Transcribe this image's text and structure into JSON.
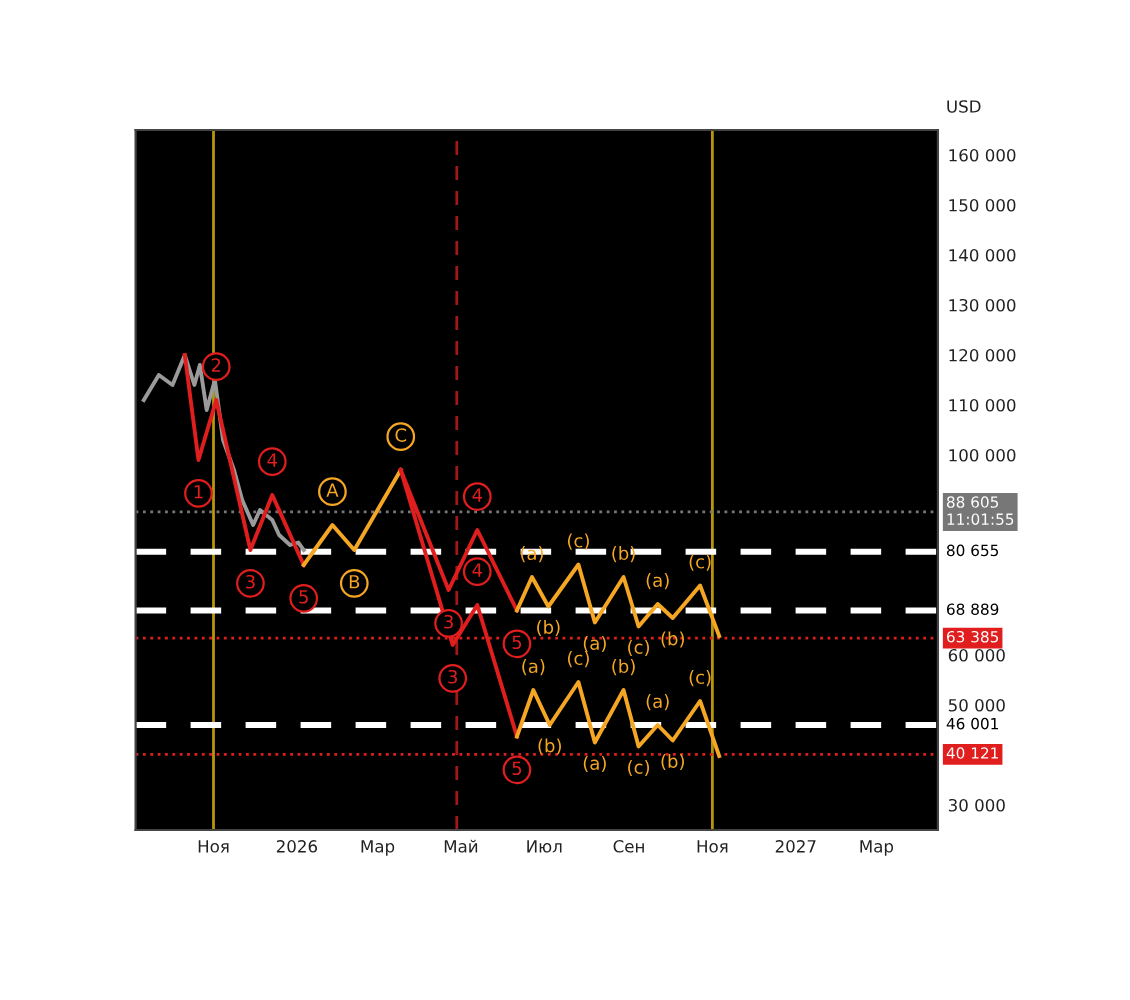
{
  "chart_data": {
    "type": "line",
    "ylabel": "USD",
    "xlim": [
      "2025-09-05",
      "2027-04-15"
    ],
    "xticks": [
      {
        "value": "2025-11-01",
        "label": "Ноя"
      },
      {
        "value": "2026-01-01",
        "label": "2026"
      },
      {
        "value": "2026-03-01",
        "label": "Мар"
      },
      {
        "value": "2026-05-01",
        "label": "Май"
      },
      {
        "value": "2026-07-01",
        "label": "Июл"
      },
      {
        "value": "2026-09-01",
        "label": "Сен"
      },
      {
        "value": "2026-11-01",
        "label": "Ноя"
      },
      {
        "value": "2027-01-01",
        "label": "2027"
      },
      {
        "value": "2027-03-01",
        "label": "Мар"
      }
    ],
    "ylim": [
      25000,
      165000
    ],
    "yticks": [
      {
        "value": 30000,
        "label": "30 000"
      },
      {
        "value": 50000,
        "label": "50 000"
      },
      {
        "value": 60000,
        "label": "60 000"
      },
      {
        "value": 100000,
        "label": "100 000"
      },
      {
        "value": 110000,
        "label": "110 000"
      },
      {
        "value": 120000,
        "label": "120 000"
      },
      {
        "value": 130000,
        "label": "130 000"
      },
      {
        "value": 140000,
        "label": "140 000"
      },
      {
        "value": 150000,
        "label": "150 000"
      },
      {
        "value": 160000,
        "label": "160 000"
      }
    ],
    "grid": false,
    "marker": "none",
    "line_style": "solid",
    "series": [
      {
        "color": "#9a9a9a",
        "x": [
          "2025-09-11",
          "2025-09-22",
          "2025-10-02",
          "2025-10-11",
          "2025-10-18",
          "2025-10-22",
          "2025-10-27",
          "2025-11-02",
          "2025-11-08",
          "2025-11-16",
          "2025-11-22",
          "2025-11-30",
          "2025-12-05",
          "2025-12-14",
          "2025-12-19",
          "2025-12-27",
          "2026-01-02",
          "2026-01-06"
        ],
        "values": [
          111000,
          116000,
          114000,
          120000,
          114000,
          118000,
          109000,
          115000,
          103000,
          97000,
          91000,
          86000,
          89000,
          87000,
          84000,
          82000,
          82500,
          81000
        ]
      },
      {
        "color": "#e01e1e",
        "x": [
          "2025-10-11",
          "2025-10-21",
          "2025-11-03",
          "2025-11-28",
          "2025-12-14",
          "2026-01-06"
        ],
        "values": [
          120000,
          99000,
          111000,
          81000,
          92000,
          78000
        ]
      },
      {
        "color": "#f5a623",
        "x": [
          "2026-01-06",
          "2026-01-27",
          "2026-02-12",
          "2026-03-18"
        ],
        "values": [
          78000,
          86000,
          81000,
          97000
        ]
      },
      {
        "color": "#e01e1e",
        "x": [
          "2026-03-18",
          "2026-04-22",
          "2026-05-13",
          "2026-06-11"
        ],
        "values": [
          97000,
          73000,
          85000,
          68900
        ]
      },
      {
        "color": "#f5a623",
        "x": [
          "2026-06-11",
          "2026-06-22",
          "2026-07-04",
          "2026-07-26",
          "2026-08-07",
          "2026-08-28",
          "2026-09-08",
          "2026-09-22",
          "2026-10-03",
          "2026-10-23",
          "2026-11-06"
        ],
        "values": [
          68900,
          75600,
          69700,
          78100,
          66500,
          75600,
          65700,
          70200,
          67400,
          73900,
          63800
        ]
      },
      {
        "color": "#e01e1e",
        "x": [
          "2026-03-18",
          "2026-04-25",
          "2026-05-13",
          "2026-06-11"
        ],
        "values": [
          97000,
          62000,
          70000,
          43700
        ]
      },
      {
        "color": "#f5a623",
        "x": [
          "2026-06-11",
          "2026-06-23",
          "2026-07-05",
          "2026-07-26",
          "2026-08-07",
          "2026-08-28",
          "2026-09-08",
          "2026-09-22",
          "2026-10-03",
          "2026-10-23",
          "2026-11-06"
        ],
        "values": [
          43700,
          53000,
          46000,
          54600,
          42500,
          53000,
          41700,
          46000,
          42900,
          50800,
          39800
        ]
      }
    ],
    "ref_lines": [
      {
        "axis": "y",
        "value": 88605,
        "label": "88 605\n11:01:55",
        "color": "#777777",
        "line_style": "dotted"
      },
      {
        "axis": "y",
        "value": 80655,
        "label": "80 655",
        "color": "#ffffff",
        "line_style": "dashed"
      },
      {
        "axis": "y",
        "value": 68889,
        "label": "68 889",
        "color": "#ffffff",
        "line_style": "dashed"
      },
      {
        "axis": "y",
        "value": 63385,
        "label": "63 385",
        "color": "#e01e1e",
        "line_style": "dotted"
      },
      {
        "axis": "y",
        "value": 46001,
        "label": "46 001",
        "color": "#ffffff",
        "line_style": "dashed"
      },
      {
        "axis": "y",
        "value": 40121,
        "label": "40 121",
        "color": "#e01e1e",
        "line_style": "dotted"
      },
      {
        "axis": "x",
        "value": "2025-11-01",
        "color": "#b8960c",
        "line_style": "solid"
      },
      {
        "axis": "x",
        "value": "2026-04-28",
        "color": "#a01818",
        "line_style": "dashed"
      },
      {
        "axis": "x",
        "value": "2026-11-01",
        "color": "#b8960c",
        "line_style": "solid"
      }
    ],
    "annotations": [
      {
        "text": "2",
        "x": "2025-11-03",
        "y": 111000
      },
      {
        "text": "1",
        "x": "2025-10-21",
        "y": 99000
      },
      {
        "text": "4",
        "x": "2025-12-14",
        "y": 92000
      },
      {
        "text": "3",
        "x": "2025-11-28",
        "y": 81000
      },
      {
        "text": "5",
        "x": "2026-01-06",
        "y": 78000
      },
      {
        "text": "A",
        "x": "2026-01-27",
        "y": 86000
      },
      {
        "text": "B",
        "x": "2026-02-12",
        "y": 81000
      },
      {
        "text": "C",
        "x": "2026-03-18",
        "y": 97000
      },
      {
        "text": "3",
        "x": "2026-04-22",
        "y": 73000
      },
      {
        "text": "4",
        "x": "2026-05-13",
        "y": 85000
      },
      {
        "text": "5",
        "x": "2026-06-11",
        "y": 68900
      },
      {
        "text": "3",
        "x": "2026-04-25",
        "y": 62000
      },
      {
        "text": "4",
        "x": "2026-05-13",
        "y": 70000
      },
      {
        "text": "(a)",
        "x": "2026-06-22",
        "y": 75600
      },
      {
        "text": "(b)",
        "x": "2026-07-04",
        "y": 69700
      },
      {
        "text": "(c)",
        "x": "2026-07-26",
        "y": 78100
      },
      {
        "text": "(a)",
        "x": "2026-08-07",
        "y": 66500
      },
      {
        "text": "(b)",
        "x": "2026-08-28",
        "y": 75600
      },
      {
        "text": "(c)",
        "x": "2026-09-08",
        "y": 65700
      },
      {
        "text": "(a)",
        "x": "2026-09-22",
        "y": 70200
      },
      {
        "text": "(b)",
        "x": "2026-10-03",
        "y": 67400
      },
      {
        "text": "(c)",
        "x": "2026-10-23",
        "y": 73900
      },
      {
        "text": "5",
        "x": "2026-06-11",
        "y": 43700
      },
      {
        "text": "(a)",
        "x": "2026-06-23",
        "y": 53000
      },
      {
        "text": "(b)",
        "x": "2026-07-05",
        "y": 46000
      },
      {
        "text": "(c)",
        "x": "2026-07-26",
        "y": 54600
      },
      {
        "text": "(a)",
        "x": "2026-08-07",
        "y": 42500
      },
      {
        "text": "(b)",
        "x": "2026-08-28",
        "y": 53000
      },
      {
        "text": "(c)",
        "x": "2026-09-08",
        "y": 41700
      },
      {
        "text": "(a)",
        "x": "2026-09-22",
        "y": 46000
      },
      {
        "text": "(b)",
        "x": "2026-10-03",
        "y": 42900
      },
      {
        "text": "(c)",
        "x": "2026-10-23",
        "y": 50800
      }
    ]
  }
}
